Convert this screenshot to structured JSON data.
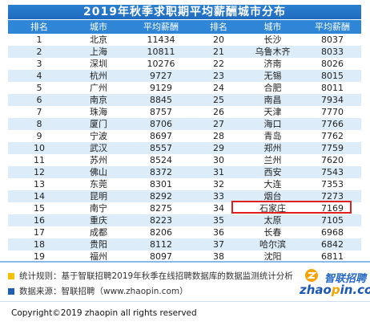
{
  "title": "2019年秋季求职期平均薪酬城市分布",
  "headers": [
    "排名",
    "城市",
    "平均薪酬",
    "排名",
    "城市",
    "平均薪酬"
  ],
  "rows": [
    [
      "1",
      "北京",
      "11434",
      "20",
      "长沙",
      "8037"
    ],
    [
      "2",
      "上海",
      "10811",
      "21",
      "乌鲁木齐",
      "8033"
    ],
    [
      "3",
      "深圳",
      "10276",
      "22",
      "济南",
      "8026"
    ],
    [
      "4",
      "杭州",
      "9727",
      "23",
      "无锡",
      "8015"
    ],
    [
      "5",
      "广州",
      "9129",
      "24",
      "合肥",
      "8011"
    ],
    [
      "6",
      "南京",
      "8845",
      "25",
      "南昌",
      "7934"
    ],
    [
      "7",
      "珠海",
      "8757",
      "26",
      "天津",
      "7770"
    ],
    [
      "8",
      "厦门",
      "8706",
      "27",
      "海口",
      "7766"
    ],
    [
      "9",
      "宁波",
      "8697",
      "28",
      "青岛",
      "7762"
    ],
    [
      "10",
      "武汉",
      "8557",
      "29",
      "郑州",
      "7759"
    ],
    [
      "11",
      "苏州",
      "8524",
      "30",
      "兰州",
      "7620"
    ],
    [
      "12",
      "佛山",
      "8372",
      "31",
      "西安",
      "7543"
    ],
    [
      "13",
      "东莞",
      "8301",
      "32",
      "大连",
      "7353"
    ],
    [
      "14",
      "昆明",
      "8292",
      "33",
      "烟台",
      "7273"
    ],
    [
      "15",
      "南宁",
      "8275",
      "34",
      "石家庄",
      "7169"
    ],
    [
      "16",
      "重庆",
      "8223",
      "35",
      "太原",
      "7105"
    ],
    [
      "17",
      "成都",
      "8206",
      "36",
      "长春",
      "6968"
    ],
    [
      "18",
      "贵阳",
      "8112",
      "37",
      "哈尔滨",
      "6842"
    ],
    [
      "19",
      "福州",
      "8097",
      "38",
      "沈阳",
      "6811"
    ]
  ],
  "notes": {
    "stat_rule": "统计规则：基于智联招聘2019年秋季在线招聘数据库的数据监测统计分析",
    "data_source": "数据来源：智联招聘（www.zhaopin.com）"
  },
  "logo": {
    "cn": "智联招聘",
    "en_prefix": "zhao",
    "en_dot": "p",
    "en_suffix": "in.com"
  },
  "copyright": "Copyright©2019 zhaopin all rights reserved",
  "colors": {
    "header_blue": "#2f86d6",
    "stripe": "#dcecf9",
    "highlight": "#e02020",
    "stat_square": "#f2c200",
    "source_square": "#1f5fb3"
  }
}
